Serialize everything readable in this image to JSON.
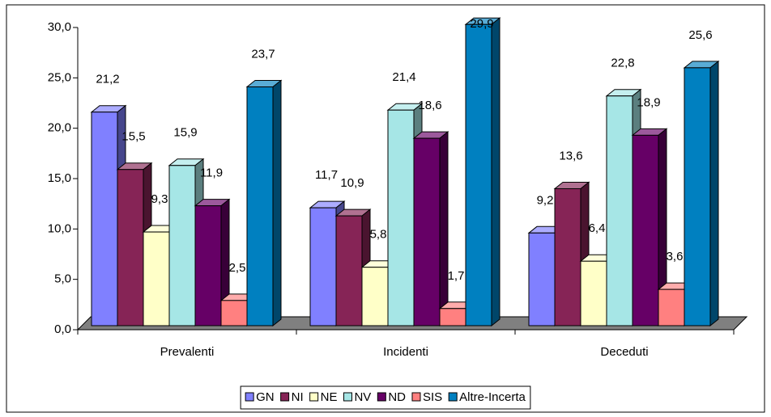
{
  "chart_data": {
    "type": "bar3d",
    "categories": [
      "Prevalenti",
      "Incidenti",
      "Deceduti"
    ],
    "series": [
      {
        "name": "GN",
        "color": "#8080FF",
        "values": [
          21.2,
          11.7,
          9.2
        ],
        "value_labels": [
          "21,2",
          "11,7",
          "9,2"
        ]
      },
      {
        "name": "NI",
        "color": "#862456",
        "values": [
          15.5,
          10.9,
          13.6
        ],
        "value_labels": [
          "15,5",
          "10,9",
          "13,6"
        ]
      },
      {
        "name": "NE",
        "color": "#FFFFC8",
        "values": [
          9.3,
          5.8,
          6.4
        ],
        "value_labels": [
          "9,3",
          "5,8",
          "6,4"
        ]
      },
      {
        "name": "NV",
        "color": "#A6E6E6",
        "values": [
          15.9,
          21.4,
          22.8
        ],
        "value_labels": [
          "15,9",
          "21,4",
          "22,8"
        ]
      },
      {
        "name": "ND",
        "color": "#660066",
        "values": [
          11.9,
          18.6,
          18.9
        ],
        "value_labels": [
          "11,9",
          "18,6",
          "18,9"
        ]
      },
      {
        "name": "SIS",
        "color": "#FF8080",
        "values": [
          2.5,
          1.7,
          3.6
        ],
        "value_labels": [
          "2,5",
          "1,7",
          "3,6"
        ]
      },
      {
        "name": "Altre-Incerta",
        "color": "#0080C0",
        "values": [
          23.7,
          29.9,
          25.6
        ],
        "value_labels": [
          "23,7",
          "29,9",
          "25,6"
        ]
      }
    ],
    "ylim": [
      0,
      30
    ],
    "yticks": [
      {
        "value": 0,
        "label": "0,0"
      },
      {
        "value": 5,
        "label": "5,0"
      },
      {
        "value": 10,
        "label": "10,0"
      },
      {
        "value": 15,
        "label": "15,0"
      },
      {
        "value": 20,
        "label": "20,0"
      },
      {
        "value": 25,
        "label": "25,0"
      },
      {
        "value": 30,
        "label": "30,0"
      }
    ],
    "legend": "bottom"
  }
}
